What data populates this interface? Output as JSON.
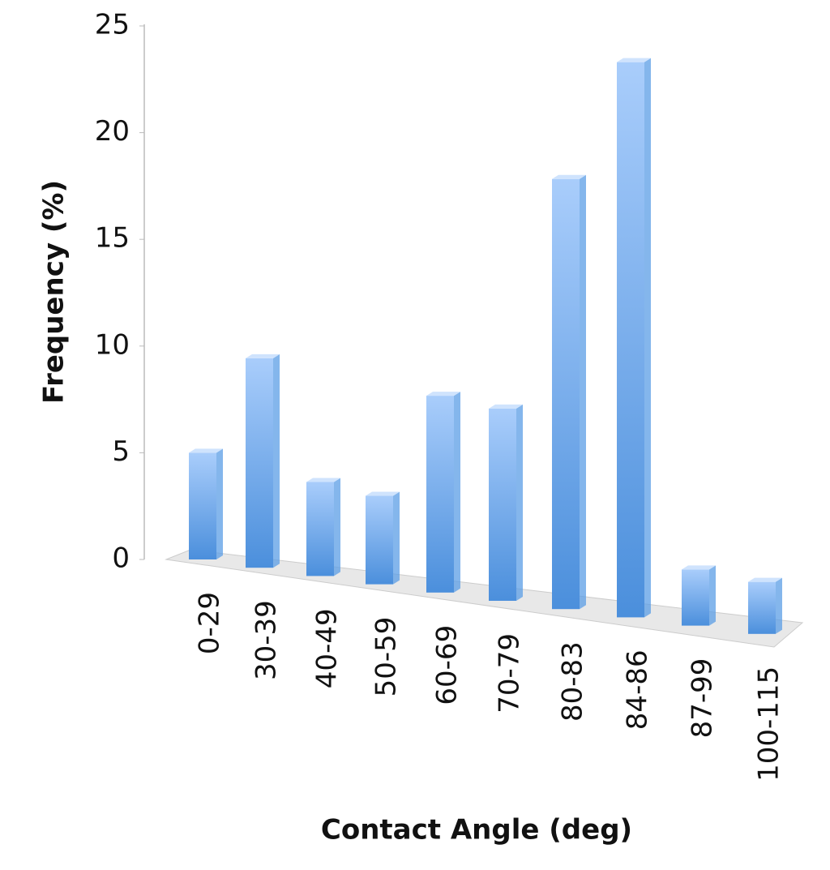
{
  "chart_data": {
    "type": "bar3d",
    "x_label": "Contact Angle (deg)",
    "y_label": "Frequency (%)",
    "categories": [
      "0-29",
      "30-39",
      "40-49",
      "50-59",
      "60-69",
      "70-79",
      "80-83",
      "84-86",
      "87-99",
      "100-115"
    ],
    "values": [
      5,
      9.7,
      4.3,
      4,
      8.8,
      8.5,
      18.8,
      24,
      2.4,
      2.2
    ],
    "color": "#5b9ee6",
    "ylim": [
      0,
      25
    ],
    "yticks": [
      0,
      5,
      10,
      15,
      20,
      25
    ]
  }
}
